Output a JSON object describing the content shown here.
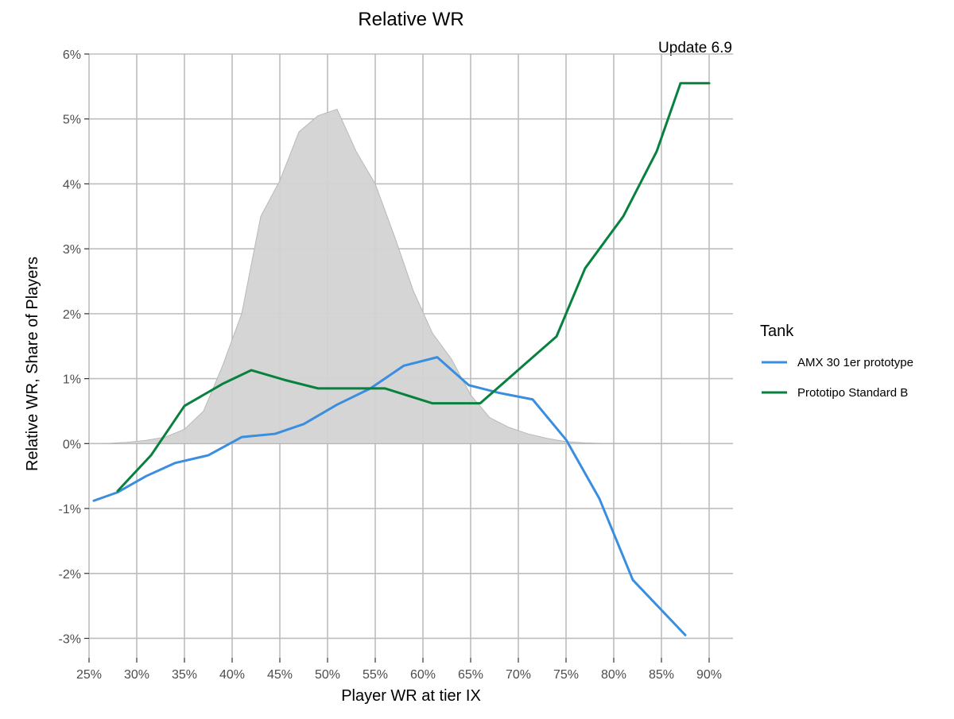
{
  "chart_data": {
    "type": "line",
    "title": "Relative WR",
    "subtitle": "Update 6.9",
    "xlabel": "Player WR at tier IX",
    "ylabel": "Relative WR, Share of Players",
    "xlim": [
      0.25,
      0.925
    ],
    "ylim": [
      -0.033,
      0.06
    ],
    "x_ticks": [
      0.25,
      0.3,
      0.35,
      0.4,
      0.45,
      0.5,
      0.55,
      0.6,
      0.65,
      0.7,
      0.75,
      0.8,
      0.85,
      0.9
    ],
    "x_tick_labels": [
      "25%",
      "30%",
      "35%",
      "40%",
      "45%",
      "50%",
      "55%",
      "60%",
      "65%",
      "70%",
      "75%",
      "80%",
      "85%",
      "90%"
    ],
    "y_ticks": [
      -0.03,
      -0.02,
      -0.01,
      0.0,
      0.01,
      0.02,
      0.03,
      0.04,
      0.05,
      0.06
    ],
    "y_tick_labels": [
      "-3%",
      "-2%",
      "-1%",
      "0%",
      "1%",
      "2%",
      "3%",
      "4%",
      "5%",
      "6%"
    ],
    "grid": true,
    "legend": {
      "title": "Tank",
      "position": "right",
      "entries": [
        "AMX 30 1er prototype",
        "Prototipo Standard B"
      ]
    },
    "distribution_area": {
      "color": "#d3d3d3",
      "outline": "#b8b8b8",
      "x": [
        0.265,
        0.29,
        0.31,
        0.33,
        0.35,
        0.37,
        0.39,
        0.41,
        0.43,
        0.45,
        0.47,
        0.49,
        0.51,
        0.53,
        0.55,
        0.57,
        0.59,
        0.61,
        0.63,
        0.65,
        0.67,
        0.69,
        0.71,
        0.73,
        0.75,
        0.77,
        0.8,
        0.83,
        0.87
      ],
      "y": [
        0.0,
        0.0002,
        0.0005,
        0.001,
        0.0022,
        0.005,
        0.012,
        0.02,
        0.035,
        0.0405,
        0.048,
        0.0505,
        0.0515,
        0.045,
        0.04,
        0.032,
        0.0235,
        0.017,
        0.013,
        0.0075,
        0.004,
        0.0025,
        0.0015,
        0.0008,
        0.0003,
        0.0001,
        0.0,
        0.0,
        0.0
      ]
    },
    "series": [
      {
        "name": "AMX 30 1er prototype",
        "color": "#3a8ee0",
        "x": [
          0.255,
          0.28,
          0.31,
          0.34,
          0.375,
          0.41,
          0.445,
          0.475,
          0.51,
          0.545,
          0.58,
          0.615,
          0.648,
          0.68,
          0.715,
          0.75,
          0.785,
          0.82,
          0.875
        ],
        "y": [
          -0.0088,
          -0.0075,
          -0.005,
          -0.003,
          -0.0018,
          0.001,
          0.0015,
          0.003,
          0.006,
          0.0085,
          0.012,
          0.0133,
          0.009,
          0.0078,
          0.0068,
          0.0006,
          -0.0085,
          -0.021,
          -0.0295
        ]
      },
      {
        "name": "Prototipo Standard B",
        "color": "#08813f",
        "x": [
          0.28,
          0.315,
          0.35,
          0.39,
          0.42,
          0.455,
          0.49,
          0.525,
          0.56,
          0.61,
          0.66,
          0.705,
          0.74,
          0.77,
          0.81,
          0.845,
          0.87,
          0.9
        ],
        "y": [
          -0.0073,
          -0.0018,
          0.0058,
          0.0092,
          0.0113,
          0.0098,
          0.0085,
          0.0085,
          0.0085,
          0.0062,
          0.0062,
          0.012,
          0.0165,
          0.027,
          0.035,
          0.045,
          0.0555,
          0.0555
        ]
      }
    ]
  }
}
